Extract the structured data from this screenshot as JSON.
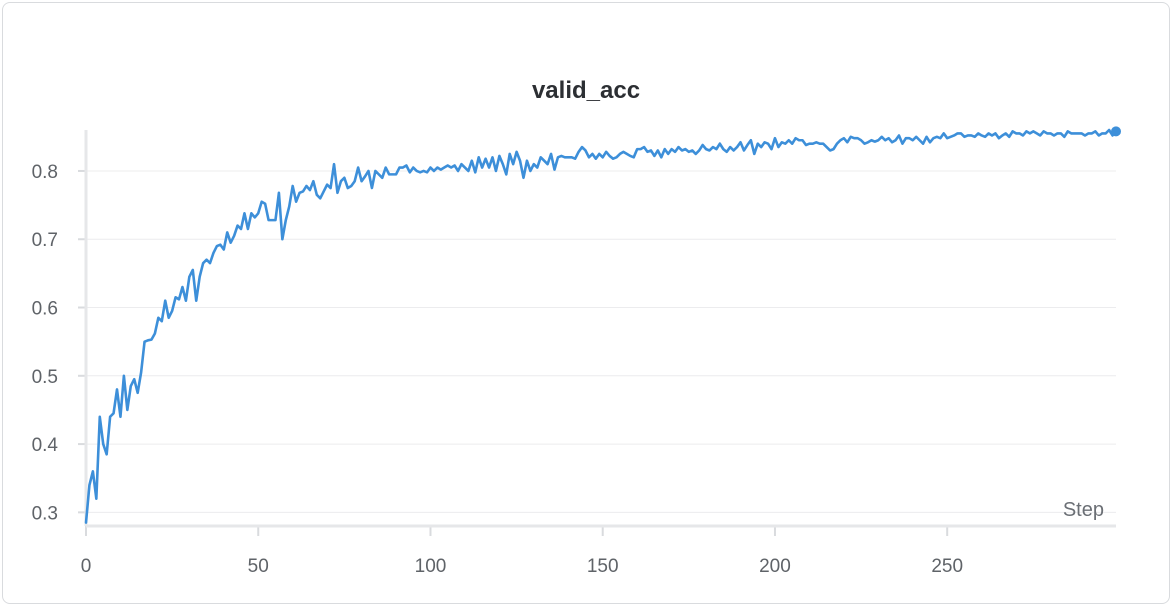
{
  "chart_data": {
    "type": "line",
    "title": "valid_acc",
    "xlabel": "Step",
    "ylabel": "",
    "xlim": [
      0,
      299
    ],
    "ylim": [
      0.28,
      0.86
    ],
    "x_ticks": [
      0,
      50,
      100,
      150,
      200,
      250
    ],
    "y_ticks": [
      0.3,
      0.4,
      0.5,
      0.6,
      0.7,
      0.8
    ],
    "grid": true,
    "line_color": "#3d8fd9",
    "series": [
      {
        "name": "",
        "points": [
          [
            0,
            0.285
          ],
          [
            1,
            0.34
          ],
          [
            2,
            0.36
          ],
          [
            3,
            0.32
          ],
          [
            4,
            0.44
          ],
          [
            5,
            0.4
          ],
          [
            6,
            0.385
          ],
          [
            7,
            0.44
          ],
          [
            8,
            0.445
          ],
          [
            9,
            0.48
          ],
          [
            10,
            0.44
          ],
          [
            11,
            0.5
          ],
          [
            12,
            0.45
          ],
          [
            13,
            0.485
          ],
          [
            14,
            0.495
          ],
          [
            15,
            0.475
          ],
          [
            16,
            0.505
          ],
          [
            17,
            0.55
          ],
          [
            18,
            0.552
          ],
          [
            19,
            0.553
          ],
          [
            20,
            0.562
          ],
          [
            21,
            0.585
          ],
          [
            22,
            0.58
          ],
          [
            23,
            0.61
          ],
          [
            24,
            0.585
          ],
          [
            25,
            0.595
          ],
          [
            26,
            0.615
          ],
          [
            27,
            0.612
          ],
          [
            28,
            0.63
          ],
          [
            29,
            0.61
          ],
          [
            30,
            0.645
          ],
          [
            31,
            0.655
          ],
          [
            32,
            0.61
          ],
          [
            33,
            0.645
          ],
          [
            34,
            0.665
          ],
          [
            35,
            0.67
          ],
          [
            36,
            0.665
          ],
          [
            37,
            0.68
          ],
          [
            38,
            0.69
          ],
          [
            39,
            0.692
          ],
          [
            40,
            0.685
          ],
          [
            41,
            0.71
          ],
          [
            42,
            0.695
          ],
          [
            43,
            0.705
          ],
          [
            44,
            0.72
          ],
          [
            45,
            0.715
          ],
          [
            46,
            0.738
          ],
          [
            47,
            0.715
          ],
          [
            48,
            0.738
          ],
          [
            49,
            0.732
          ],
          [
            50,
            0.738
          ],
          [
            51,
            0.755
          ],
          [
            52,
            0.752
          ],
          [
            53,
            0.728
          ],
          [
            54,
            0.728
          ],
          [
            55,
            0.728
          ],
          [
            56,
            0.768
          ],
          [
            57,
            0.7
          ],
          [
            58,
            0.728
          ],
          [
            59,
            0.748
          ],
          [
            60,
            0.778
          ],
          [
            61,
            0.755
          ],
          [
            62,
            0.768
          ],
          [
            63,
            0.77
          ],
          [
            64,
            0.778
          ],
          [
            65,
            0.772
          ],
          [
            66,
            0.785
          ],
          [
            67,
            0.765
          ],
          [
            68,
            0.76
          ],
          [
            69,
            0.77
          ],
          [
            70,
            0.78
          ],
          [
            71,
            0.775
          ],
          [
            72,
            0.81
          ],
          [
            73,
            0.768
          ],
          [
            74,
            0.785
          ],
          [
            75,
            0.79
          ],
          [
            76,
            0.775
          ],
          [
            77,
            0.778
          ],
          [
            78,
            0.785
          ],
          [
            79,
            0.805
          ],
          [
            80,
            0.785
          ],
          [
            81,
            0.792
          ],
          [
            82,
            0.8
          ],
          [
            83,
            0.775
          ],
          [
            84,
            0.8
          ],
          [
            85,
            0.795
          ],
          [
            86,
            0.79
          ],
          [
            87,
            0.805
          ],
          [
            88,
            0.795
          ],
          [
            89,
            0.795
          ],
          [
            90,
            0.795
          ],
          [
            91,
            0.805
          ],
          [
            92,
            0.805
          ],
          [
            93,
            0.808
          ],
          [
            94,
            0.798
          ],
          [
            95,
            0.805
          ],
          [
            96,
            0.8
          ],
          [
            97,
            0.798
          ],
          [
            98,
            0.8
          ],
          [
            99,
            0.798
          ],
          [
            100,
            0.805
          ],
          [
            101,
            0.8
          ],
          [
            102,
            0.805
          ],
          [
            103,
            0.802
          ],
          [
            104,
            0.805
          ],
          [
            105,
            0.808
          ],
          [
            106,
            0.805
          ],
          [
            107,
            0.808
          ],
          [
            108,
            0.8
          ],
          [
            109,
            0.81
          ],
          [
            110,
            0.805
          ],
          [
            111,
            0.8
          ],
          [
            112,
            0.815
          ],
          [
            113,
            0.798
          ],
          [
            114,
            0.82
          ],
          [
            115,
            0.805
          ],
          [
            116,
            0.818
          ],
          [
            117,
            0.805
          ],
          [
            118,
            0.82
          ],
          [
            119,
            0.8
          ],
          [
            120,
            0.822
          ],
          [
            121,
            0.81
          ],
          [
            122,
            0.795
          ],
          [
            123,
            0.825
          ],
          [
            124,
            0.81
          ],
          [
            125,
            0.828
          ],
          [
            126,
            0.815
          ],
          [
            127,
            0.79
          ],
          [
            128,
            0.815
          ],
          [
            129,
            0.8
          ],
          [
            130,
            0.81
          ],
          [
            131,
            0.805
          ],
          [
            132,
            0.82
          ],
          [
            133,
            0.815
          ],
          [
            134,
            0.81
          ],
          [
            135,
            0.825
          ],
          [
            136,
            0.802
          ],
          [
            137,
            0.82
          ],
          [
            138,
            0.822
          ],
          [
            139,
            0.82
          ],
          [
            140,
            0.82
          ],
          [
            141,
            0.82
          ],
          [
            142,
            0.818
          ],
          [
            143,
            0.828
          ],
          [
            144,
            0.835
          ],
          [
            145,
            0.83
          ],
          [
            146,
            0.82
          ],
          [
            147,
            0.825
          ],
          [
            148,
            0.818
          ],
          [
            149,
            0.825
          ],
          [
            150,
            0.82
          ],
          [
            151,
            0.828
          ],
          [
            152,
            0.822
          ],
          [
            153,
            0.818
          ],
          [
            154,
            0.82
          ],
          [
            155,
            0.825
          ],
          [
            156,
            0.828
          ],
          [
            157,
            0.825
          ],
          [
            158,
            0.822
          ],
          [
            159,
            0.82
          ],
          [
            160,
            0.832
          ],
          [
            161,
            0.832
          ],
          [
            162,
            0.835
          ],
          [
            163,
            0.828
          ],
          [
            164,
            0.83
          ],
          [
            165,
            0.822
          ],
          [
            166,
            0.83
          ],
          [
            167,
            0.82
          ],
          [
            168,
            0.832
          ],
          [
            169,
            0.825
          ],
          [
            170,
            0.832
          ],
          [
            171,
            0.828
          ],
          [
            172,
            0.835
          ],
          [
            173,
            0.83
          ],
          [
            174,
            0.832
          ],
          [
            175,
            0.828
          ],
          [
            176,
            0.83
          ],
          [
            177,
            0.825
          ],
          [
            178,
            0.83
          ],
          [
            179,
            0.838
          ],
          [
            180,
            0.832
          ],
          [
            181,
            0.83
          ],
          [
            182,
            0.835
          ],
          [
            183,
            0.832
          ],
          [
            184,
            0.84
          ],
          [
            185,
            0.832
          ],
          [
            186,
            0.828
          ],
          [
            187,
            0.835
          ],
          [
            188,
            0.83
          ],
          [
            189,
            0.835
          ],
          [
            190,
            0.842
          ],
          [
            191,
            0.83
          ],
          [
            192,
            0.838
          ],
          [
            193,
            0.845
          ],
          [
            194,
            0.825
          ],
          [
            195,
            0.84
          ],
          [
            196,
            0.835
          ],
          [
            197,
            0.842
          ],
          [
            198,
            0.84
          ],
          [
            199,
            0.832
          ],
          [
            200,
            0.848
          ],
          [
            201,
            0.835
          ],
          [
            202,
            0.842
          ],
          [
            203,
            0.84
          ],
          [
            204,
            0.845
          ],
          [
            205,
            0.84
          ],
          [
            206,
            0.848
          ],
          [
            207,
            0.845
          ],
          [
            208,
            0.845
          ],
          [
            209,
            0.838
          ],
          [
            210,
            0.84
          ],
          [
            211,
            0.84
          ],
          [
            212,
            0.842
          ],
          [
            213,
            0.84
          ],
          [
            214,
            0.84
          ],
          [
            215,
            0.835
          ],
          [
            216,
            0.83
          ],
          [
            217,
            0.832
          ],
          [
            218,
            0.84
          ],
          [
            219,
            0.845
          ],
          [
            220,
            0.848
          ],
          [
            221,
            0.842
          ],
          [
            222,
            0.85
          ],
          [
            223,
            0.848
          ],
          [
            224,
            0.848
          ],
          [
            225,
            0.845
          ],
          [
            226,
            0.84
          ],
          [
            227,
            0.842
          ],
          [
            228,
            0.845
          ],
          [
            229,
            0.843
          ],
          [
            230,
            0.845
          ],
          [
            231,
            0.85
          ],
          [
            232,
            0.845
          ],
          [
            233,
            0.848
          ],
          [
            234,
            0.842
          ],
          [
            235,
            0.845
          ],
          [
            236,
            0.852
          ],
          [
            237,
            0.84
          ],
          [
            238,
            0.848
          ],
          [
            239,
            0.848
          ],
          [
            240,
            0.845
          ],
          [
            241,
            0.85
          ],
          [
            242,
            0.845
          ],
          [
            243,
            0.84
          ],
          [
            244,
            0.85
          ],
          [
            245,
            0.842
          ],
          [
            246,
            0.848
          ],
          [
            247,
            0.85
          ],
          [
            248,
            0.848
          ],
          [
            249,
            0.855
          ],
          [
            250,
            0.848
          ],
          [
            251,
            0.85
          ],
          [
            252,
            0.852
          ],
          [
            253,
            0.855
          ],
          [
            254,
            0.855
          ],
          [
            255,
            0.85
          ],
          [
            256,
            0.852
          ],
          [
            257,
            0.852
          ],
          [
            258,
            0.85
          ],
          [
            259,
            0.855
          ],
          [
            260,
            0.852
          ],
          [
            261,
            0.85
          ],
          [
            262,
            0.855
          ],
          [
            263,
            0.852
          ],
          [
            264,
            0.855
          ],
          [
            265,
            0.848
          ],
          [
            266,
            0.852
          ],
          [
            267,
            0.855
          ],
          [
            268,
            0.85
          ],
          [
            269,
            0.858
          ],
          [
            270,
            0.855
          ],
          [
            271,
            0.855
          ],
          [
            272,
            0.852
          ],
          [
            273,
            0.858
          ],
          [
            274,
            0.855
          ],
          [
            275,
            0.858
          ],
          [
            276,
            0.855
          ],
          [
            277,
            0.852
          ],
          [
            278,
            0.858
          ],
          [
            279,
            0.855
          ],
          [
            280,
            0.855
          ],
          [
            281,
            0.852
          ],
          [
            282,
            0.855
          ],
          [
            283,
            0.855
          ],
          [
            284,
            0.85
          ],
          [
            285,
            0.858
          ],
          [
            286,
            0.855
          ],
          [
            287,
            0.855
          ],
          [
            288,
            0.855
          ],
          [
            289,
            0.855
          ],
          [
            290,
            0.852
          ],
          [
            291,
            0.855
          ],
          [
            292,
            0.855
          ],
          [
            293,
            0.858
          ],
          [
            294,
            0.852
          ],
          [
            295,
            0.855
          ],
          [
            296,
            0.855
          ],
          [
            297,
            0.86
          ],
          [
            298,
            0.852
          ],
          [
            299,
            0.858
          ]
        ]
      }
    ]
  }
}
